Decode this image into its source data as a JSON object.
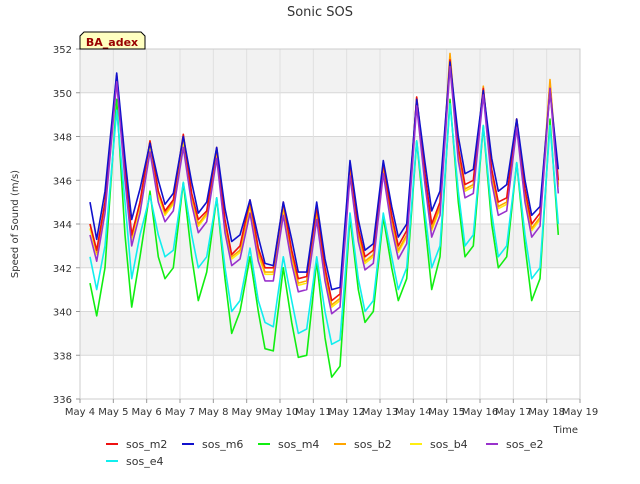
{
  "chart_data": {
    "type": "line",
    "title": "Sonic SOS",
    "xlabel": "Time",
    "ylabel": "Speed of Sound (m/s)",
    "annotation": "BA_adex",
    "grid": true,
    "legend_position": "bottom",
    "xlim": [
      4,
      19
    ],
    "ylim": [
      336,
      352
    ],
    "x_ticks": [
      4,
      5,
      6,
      7,
      8,
      9,
      10,
      11,
      12,
      13,
      14,
      15,
      16,
      17,
      18,
      19
    ],
    "x_tick_labels": [
      "May 4",
      "May 5",
      "May 6",
      "May 7",
      "May 8",
      "May 9",
      "May 10",
      "May 11",
      "May 12",
      "May 13",
      "May 14",
      "May 15",
      "May 16",
      "May 17",
      "May 18",
      "May 19"
    ],
    "y_ticks": [
      336,
      338,
      340,
      342,
      344,
      346,
      348,
      350,
      352
    ],
    "y_tick_labels": [
      "336",
      "338",
      "340",
      "342",
      "344",
      "346",
      "348",
      "350",
      "352"
    ],
    "x": [
      4.3,
      4.5,
      4.75,
      5.1,
      5.35,
      5.55,
      5.8,
      6.1,
      6.35,
      6.55,
      6.8,
      7.1,
      7.35,
      7.55,
      7.8,
      8.1,
      8.35,
      8.55,
      8.8,
      9.1,
      9.35,
      9.55,
      9.8,
      10.1,
      10.35,
      10.55,
      10.8,
      11.1,
      11.35,
      11.55,
      11.8,
      12.1,
      12.35,
      12.55,
      12.8,
      13.1,
      13.35,
      13.55,
      13.8,
      14.1,
      14.35,
      14.55,
      14.8,
      15.1,
      15.35,
      15.55,
      15.8,
      16.1,
      16.35,
      16.55,
      16.8,
      17.1,
      17.35,
      17.55,
      17.8,
      18.1,
      18.35
    ],
    "series": [
      {
        "name": "sos_m2",
        "color": "#ee1111",
        "values": [
          344,
          342.8,
          345,
          350.8,
          346.5,
          343.5,
          345,
          347.8,
          345.5,
          344.6,
          345.1,
          348.1,
          345.4,
          344.2,
          344.6,
          347.5,
          344.2,
          342.6,
          343,
          345.1,
          342.9,
          342,
          342,
          345,
          342.8,
          341.5,
          341.6,
          344.8,
          342,
          340.5,
          340.8,
          346.8,
          343.8,
          342.5,
          342.8,
          346.8,
          344.4,
          343,
          343.7,
          349.8,
          346.3,
          344,
          345,
          351.5,
          347.5,
          345.8,
          346,
          350.2,
          346.5,
          345,
          345.2,
          348.8,
          345.6,
          344,
          344.5,
          350.2,
          346
        ]
      },
      {
        "name": "sos_m6",
        "color": "#1111cc",
        "values": [
          345,
          343.3,
          345.5,
          350.9,
          347,
          344.2,
          345.6,
          347.7,
          346,
          344.9,
          345.4,
          348,
          345.9,
          344.5,
          345,
          347.5,
          344.7,
          343.2,
          343.5,
          345.1,
          343.4,
          342.2,
          342.1,
          345,
          343.3,
          341.8,
          341.8,
          345,
          342.4,
          341,
          341.1,
          346.9,
          344.2,
          342.8,
          343.1,
          346.9,
          344.8,
          343.4,
          344,
          349.7,
          346.8,
          344.6,
          345.5,
          351.4,
          348,
          346.3,
          346.5,
          350.1,
          347,
          345.5,
          345.8,
          348.8,
          346,
          344.4,
          344.8,
          350.1,
          346.5
        ]
      },
      {
        "name": "sos_m4",
        "color": "#11ee11",
        "values": [
          341.3,
          339.8,
          342,
          349.7,
          343.5,
          340.2,
          342.5,
          345.5,
          342.5,
          341.5,
          342,
          345.9,
          342.5,
          340.5,
          341.8,
          345.2,
          341.5,
          339,
          340,
          342.5,
          340,
          338.3,
          338.2,
          342,
          339.5,
          337.9,
          338,
          342.3,
          338.8,
          337,
          337.5,
          344.3,
          341,
          339.5,
          340,
          344.3,
          342,
          340.5,
          341.5,
          347.8,
          344,
          341,
          342.5,
          349.7,
          345,
          342.5,
          343,
          348.5,
          344,
          342,
          342.5,
          346.8,
          343,
          340.5,
          341.5,
          348.8,
          343.5
        ]
      },
      {
        "name": "sos_b2",
        "color": "#ffa500",
        "values": [
          344,
          342.7,
          345,
          350.8,
          346.5,
          343.4,
          345,
          347.8,
          345.5,
          344.5,
          345,
          348,
          345.3,
          344,
          344.5,
          347.4,
          344,
          342.5,
          342.8,
          344.9,
          342.7,
          341.8,
          341.8,
          344.8,
          342.6,
          341.3,
          341.4,
          344.6,
          341.8,
          340.3,
          340.6,
          346.5,
          343.6,
          342.3,
          342.6,
          346.6,
          344.2,
          342.8,
          343.5,
          349.8,
          346.2,
          343.8,
          344.8,
          351.8,
          347.3,
          345.6,
          345.8,
          350.3,
          346.3,
          344.8,
          345,
          348.8,
          345.4,
          343.8,
          344.3,
          350.6,
          345.8
        ]
      },
      {
        "name": "sos_b4",
        "color": "#ffee11",
        "values": [
          343.8,
          342.6,
          344.8,
          350.6,
          346.3,
          343.3,
          344.8,
          347.6,
          345.3,
          344.4,
          344.9,
          347.8,
          345.2,
          343.9,
          344.4,
          347.2,
          343.9,
          342.4,
          342.7,
          344.8,
          342.6,
          341.7,
          341.7,
          344.7,
          342.5,
          341.2,
          341.3,
          344.5,
          341.7,
          340.2,
          340.5,
          346.4,
          343.5,
          342.2,
          342.5,
          346.5,
          344.1,
          342.7,
          343.4,
          349.6,
          346.1,
          343.7,
          344.7,
          351.6,
          347.2,
          345.5,
          345.7,
          350.1,
          346.2,
          344.7,
          344.9,
          348.6,
          345.3,
          343.7,
          344.2,
          350.4,
          345.7
        ]
      },
      {
        "name": "sos_e2",
        "color": "#9932cc",
        "values": [
          343.5,
          342.3,
          344.5,
          350.5,
          346,
          343,
          344.5,
          347.3,
          345,
          344.1,
          344.6,
          347.5,
          344.9,
          343.6,
          344.1,
          347,
          343.6,
          342.1,
          342.4,
          344.5,
          342.3,
          341.4,
          341.4,
          344.4,
          342.2,
          340.9,
          341,
          344.2,
          341.4,
          339.9,
          340.2,
          346.2,
          343.2,
          341.9,
          342.2,
          346.3,
          343.8,
          342.4,
          343.1,
          349.4,
          345.8,
          343.4,
          344.4,
          351.2,
          346.9,
          345.2,
          345.4,
          349.9,
          345.9,
          344.4,
          344.6,
          348.4,
          345,
          343.4,
          343.9,
          350.2,
          345.4
        ]
      },
      {
        "name": "sos_e4",
        "color": "#11eeee",
        "values": [
          342.5,
          341,
          343,
          349.2,
          345,
          341.5,
          343.5,
          345.3,
          343.5,
          342.5,
          342.8,
          345.9,
          343.5,
          342,
          342.5,
          345.2,
          342,
          340,
          340.5,
          342.9,
          340.5,
          339.5,
          339.3,
          342.5,
          340.5,
          339,
          339.2,
          342.5,
          340,
          338.5,
          338.7,
          344.5,
          341.5,
          340,
          340.5,
          344.5,
          342.5,
          341,
          342,
          347.8,
          344.5,
          342,
          343,
          349.5,
          345.5,
          343,
          343.5,
          348.5,
          344.5,
          342.5,
          343,
          346.8,
          343.5,
          341.5,
          342,
          348.5,
          344
        ]
      }
    ]
  }
}
